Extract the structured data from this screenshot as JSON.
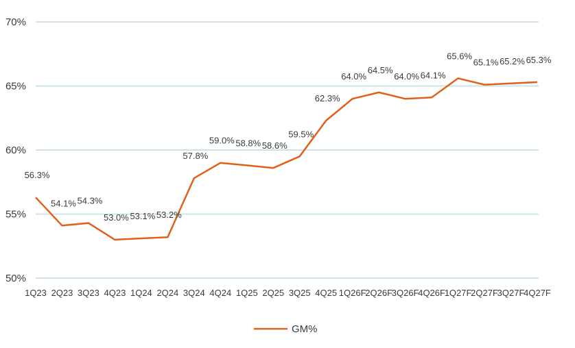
{
  "chart_data": {
    "type": "line",
    "title": "",
    "xlabel": "",
    "ylabel": "",
    "categories": [
      "1Q23",
      "2Q23",
      "3Q23",
      "4Q23",
      "1Q24",
      "2Q24",
      "3Q24",
      "4Q24",
      "1Q25",
      "2Q25",
      "3Q25",
      "4Q25",
      "1Q26F",
      "2Q26F",
      "3Q26F",
      "4Q26F",
      "1Q27F",
      "2Q27F",
      "3Q27F",
      "4Q27F"
    ],
    "series": [
      {
        "name": "GM%",
        "color": "#e0601a",
        "values": [
          56.3,
          54.1,
          54.3,
          53.0,
          53.1,
          53.2,
          57.8,
          59.0,
          58.8,
          58.6,
          59.5,
          62.3,
          64.0,
          64.5,
          64.0,
          64.1,
          65.6,
          65.1,
          65.2,
          65.3
        ],
        "labels": [
          "56.3%",
          "54.1%",
          "54.3%",
          "53.0%",
          "53.1%",
          "53.2%",
          "57.8%",
          "59.0%",
          "58.8%",
          "58.6%",
          "59.5%",
          "62.3%",
          "64.0%",
          "64.5%",
          "64.0%",
          "64.1%",
          "65.6%",
          "65.1%",
          "65.2%",
          "65.3%"
        ]
      }
    ],
    "ylim": [
      50,
      70
    ],
    "yticks": [
      50,
      55,
      60,
      65,
      70
    ],
    "ytick_labels": [
      "50%",
      "55%",
      "60%",
      "65%",
      "70%"
    ],
    "grid": true,
    "grid_color": "#cde3ea",
    "legend_position": "bottom-center"
  }
}
